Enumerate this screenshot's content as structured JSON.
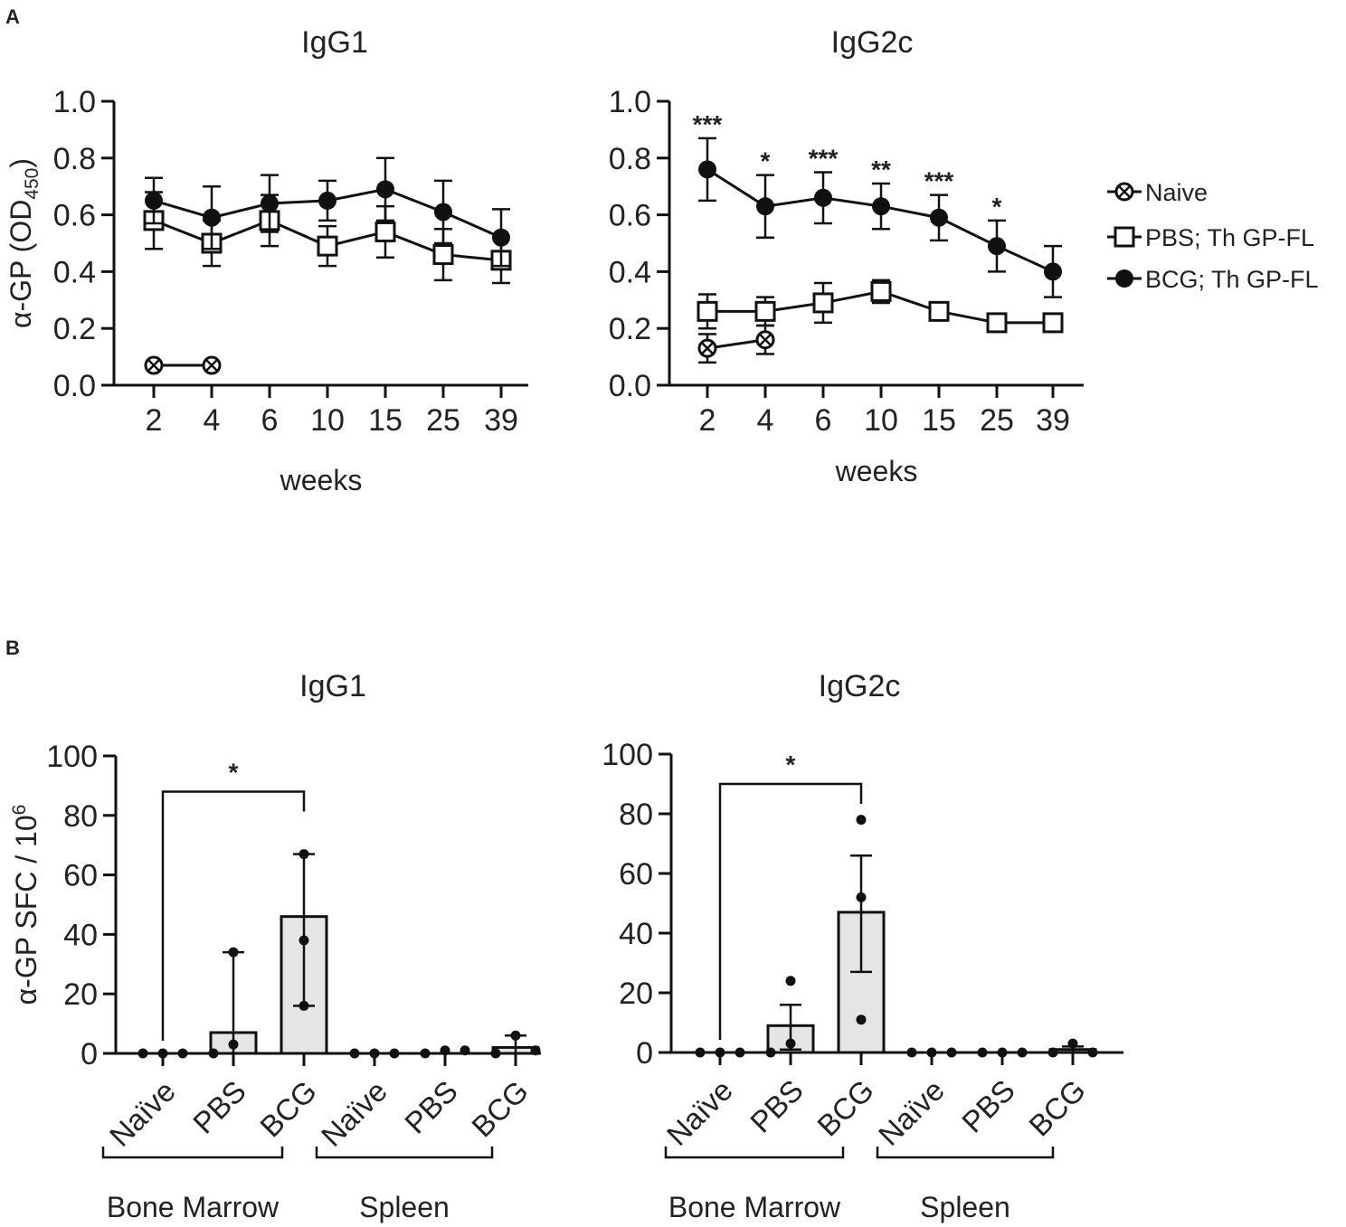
{
  "panel_labels": [
    "A",
    "B"
  ],
  "legend": {
    "items": [
      {
        "label": "Naive",
        "marker": "circle-x"
      },
      {
        "label": "PBS; Th GP-FL",
        "marker": "open-square"
      },
      {
        "label": "BCG; Th GP-FL",
        "marker": "filled-circle"
      }
    ]
  },
  "colors": {
    "axis": "#111111",
    "bar_fill": "#e5e5e5",
    "text": "#222222"
  },
  "chart_data": [
    {
      "id": "A1",
      "type": "line",
      "title": "IgG1",
      "xlabel": "weeks",
      "ylabel_main": "α-GP (OD",
      "ylabel_sub": "450",
      "ylabel_end": ")",
      "ylim": [
        0,
        1.0
      ],
      "yticks": [
        "0.0",
        "0.2",
        "0.4",
        "0.6",
        "0.8",
        "1.0"
      ],
      "categories": [
        "2",
        "4",
        "6",
        "10",
        "15",
        "25",
        "39"
      ],
      "series": [
        {
          "name": "Naive",
          "marker": "circle-x",
          "values": [
            0.07,
            0.07,
            null,
            null,
            null,
            null,
            null
          ],
          "errors": [
            0,
            0,
            null,
            null,
            null,
            null,
            null
          ]
        },
        {
          "name": "PBS; Th GP-FL",
          "marker": "open-square",
          "values": [
            0.58,
            0.5,
            0.58,
            0.49,
            0.54,
            0.46,
            0.44
          ],
          "errors": [
            0.1,
            0.08,
            0.09,
            0.07,
            0.09,
            0.09,
            0.08
          ]
        },
        {
          "name": "BCG; Th GP-FL",
          "marker": "filled-circle",
          "values": [
            0.65,
            0.59,
            0.64,
            0.65,
            0.69,
            0.61,
            0.52
          ],
          "errors": [
            0.08,
            0.11,
            0.1,
            0.07,
            0.11,
            0.11,
            0.1
          ]
        }
      ],
      "annotations": []
    },
    {
      "id": "A2",
      "type": "line",
      "title": "IgG2c",
      "xlabel": "weeks",
      "ylim": [
        0,
        1.0
      ],
      "yticks": [
        "0.0",
        "0.2",
        "0.4",
        "0.6",
        "0.8",
        "1.0"
      ],
      "categories": [
        "2",
        "4",
        "6",
        "10",
        "15",
        "25",
        "39"
      ],
      "series": [
        {
          "name": "Naive",
          "marker": "circle-x",
          "values": [
            0.13,
            0.16,
            null,
            null,
            null,
            null,
            null
          ],
          "errors": [
            0.05,
            0.05,
            null,
            null,
            null,
            null,
            null
          ]
        },
        {
          "name": "PBS; Th GP-FL",
          "marker": "open-square",
          "values": [
            0.26,
            0.26,
            0.29,
            0.33,
            0.26,
            0.22,
            0.22
          ],
          "errors": [
            0.06,
            0.05,
            0.07,
            0.04,
            0.03,
            0.02,
            0.02
          ]
        },
        {
          "name": "BCG; Th GP-FL",
          "marker": "filled-circle",
          "values": [
            0.76,
            0.63,
            0.66,
            0.63,
            0.59,
            0.49,
            0.4
          ],
          "errors": [
            0.11,
            0.11,
            0.09,
            0.08,
            0.08,
            0.09,
            0.09
          ]
        }
      ],
      "annotations": [
        "***",
        "*",
        "***",
        "**",
        "***",
        "*",
        ""
      ]
    },
    {
      "id": "B1",
      "type": "bar",
      "title": "IgG1",
      "ylabel_main": "α-GP SFC  / 10",
      "ylabel_sup": "6",
      "ylim": [
        0,
        100
      ],
      "yticks": [
        "0",
        "20",
        "40",
        "60",
        "80",
        "100"
      ],
      "categories": [
        "Naïve",
        "PBS",
        "BCG",
        "Naïve",
        "PBS",
        "BCG"
      ],
      "groups": [
        {
          "label": "Bone Marrow",
          "from": 0,
          "to": 2
        },
        {
          "label": "Spleen",
          "from": 3,
          "to": 5
        }
      ],
      "values": [
        0,
        7,
        46,
        0,
        0,
        2
      ],
      "err_low": [
        0,
        0,
        16,
        0,
        0,
        0
      ],
      "err_high": [
        0,
        34,
        67,
        0,
        0,
        6
      ],
      "points": [
        [
          0,
          0,
          0
        ],
        [
          0,
          3,
          34
        ],
        [
          16,
          38,
          67
        ],
        [
          0,
          0,
          0
        ],
        [
          0,
          1,
          1
        ],
        [
          0,
          6,
          1
        ]
      ],
      "significance": {
        "from": 0,
        "to": 2,
        "label": "*",
        "y": 88
      }
    },
    {
      "id": "B2",
      "type": "bar",
      "title": "IgG2c",
      "ylim": [
        0,
        100
      ],
      "yticks": [
        "0",
        "20",
        "40",
        "60",
        "80",
        "100"
      ],
      "categories": [
        "Naïve",
        "PBS",
        "BCG",
        "Naïve",
        "PBS",
        "BCG"
      ],
      "groups": [
        {
          "label": "Bone Marrow",
          "from": 0,
          "to": 2
        },
        {
          "label": "Spleen",
          "from": 3,
          "to": 5
        }
      ],
      "values": [
        0,
        9,
        47,
        0,
        0,
        1
      ],
      "err_low": [
        0,
        1,
        27,
        0,
        0,
        0
      ],
      "err_high": [
        0,
        16,
        66,
        0,
        0,
        2
      ],
      "points": [
        [
          0,
          0,
          0
        ],
        [
          0,
          24,
          3
        ],
        [
          11,
          52,
          78
        ],
        [
          0,
          0,
          0
        ],
        [
          0,
          0,
          0
        ],
        [
          0,
          3,
          0
        ]
      ],
      "significance": {
        "from": 0,
        "to": 2,
        "label": "*",
        "y": 90
      }
    }
  ]
}
